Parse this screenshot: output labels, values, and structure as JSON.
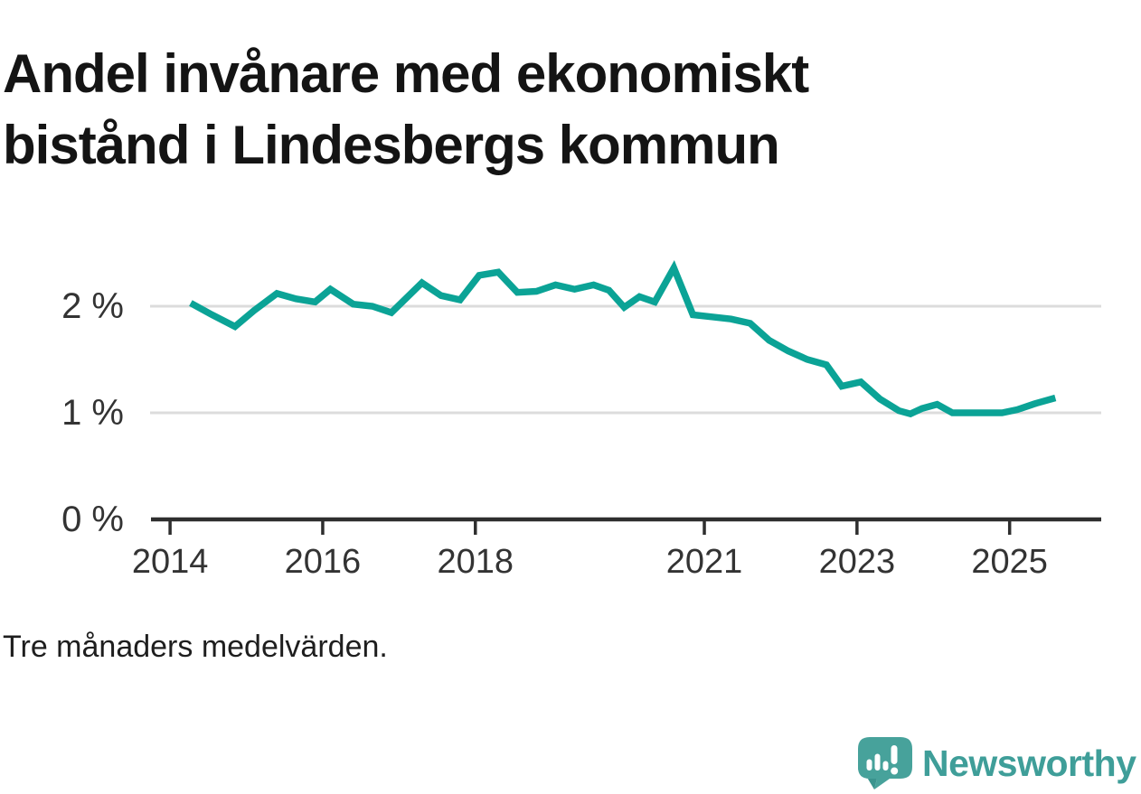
{
  "header": {
    "title_line1": "Andel invånare med ekonomiskt",
    "title_line2": "bistånd i Lindesbergs kommun"
  },
  "footnote": "Tre månaders medelvärden.",
  "branding": {
    "wordmark": "Newsworthy",
    "icon": "speech-bubble-bar-chart-icon",
    "wordmark_color": "#3f9e99",
    "icon_color": "#47a29b",
    "icon_shadow_color": "#3a948e"
  },
  "colors": {
    "line": "#0ba396",
    "gridline": "#dcdcdc",
    "axis": "#2e2e2e",
    "tick_text": "#333333",
    "title_text": "#141414"
  },
  "chart_data": {
    "type": "line",
    "title": "Andel invånare med ekonomiskt bistånd i Lindesbergs kommun",
    "note": "Tre månaders medelvärden.",
    "unit": "%",
    "grid": "horizontal",
    "legend": "none",
    "x_range": [
      2013.75,
      2026.2
    ],
    "y_range": [
      0,
      2.67
    ],
    "x_ticks": [
      {
        "value": 2014,
        "label": "2014"
      },
      {
        "value": 2016,
        "label": "2016"
      },
      {
        "value": 2018,
        "label": "2018"
      },
      {
        "value": 2021,
        "label": "2021"
      },
      {
        "value": 2023,
        "label": "2023"
      },
      {
        "value": 2025,
        "label": "2025"
      }
    ],
    "y_ticks": [
      {
        "value": 0,
        "label": "0 %"
      },
      {
        "value": 1,
        "label": "1 %"
      },
      {
        "value": 2,
        "label": "2 %"
      }
    ],
    "series": [
      {
        "color": "#0ba396",
        "points": [
          [
            2014.27,
            2.03
          ],
          [
            2014.55,
            1.92
          ],
          [
            2014.85,
            1.81
          ],
          [
            2015.1,
            1.96
          ],
          [
            2015.4,
            2.12
          ],
          [
            2015.65,
            2.07
          ],
          [
            2015.9,
            2.04
          ],
          [
            2016.1,
            2.16
          ],
          [
            2016.4,
            2.02
          ],
          [
            2016.65,
            2.0
          ],
          [
            2016.9,
            1.94
          ],
          [
            2017.3,
            2.22
          ],
          [
            2017.55,
            2.1
          ],
          [
            2017.8,
            2.06
          ],
          [
            2018.05,
            2.29
          ],
          [
            2018.3,
            2.32
          ],
          [
            2018.55,
            2.13
          ],
          [
            2018.8,
            2.14
          ],
          [
            2019.05,
            2.2
          ],
          [
            2019.3,
            2.16
          ],
          [
            2019.55,
            2.2
          ],
          [
            2019.75,
            2.15
          ],
          [
            2019.95,
            1.99
          ],
          [
            2020.15,
            2.09
          ],
          [
            2020.35,
            2.04
          ],
          [
            2020.6,
            2.36
          ],
          [
            2020.85,
            1.92
          ],
          [
            2021.1,
            1.9
          ],
          [
            2021.35,
            1.88
          ],
          [
            2021.6,
            1.84
          ],
          [
            2021.85,
            1.68
          ],
          [
            2022.1,
            1.58
          ],
          [
            2022.35,
            1.5
          ],
          [
            2022.6,
            1.45
          ],
          [
            2022.8,
            1.25
          ],
          [
            2023.05,
            1.29
          ],
          [
            2023.3,
            1.13
          ],
          [
            2023.55,
            1.02
          ],
          [
            2023.7,
            0.99
          ],
          [
            2023.85,
            1.04
          ],
          [
            2024.05,
            1.08
          ],
          [
            2024.25,
            1.0
          ],
          [
            2024.55,
            1.0
          ],
          [
            2024.9,
            1.0
          ],
          [
            2025.1,
            1.03
          ],
          [
            2025.35,
            1.09
          ],
          [
            2025.6,
            1.14
          ]
        ]
      }
    ]
  }
}
